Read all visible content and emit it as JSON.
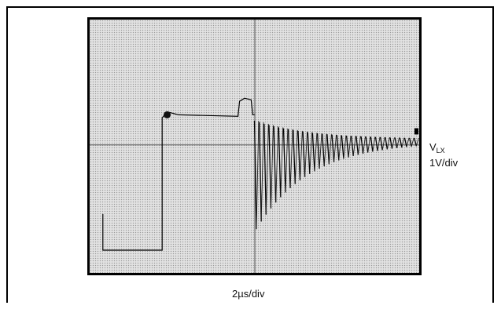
{
  "chart_data": {
    "type": "line",
    "title": "",
    "grid": true,
    "series": [
      {
        "name": "VLX",
        "x": [
          0,
          0.1,
          0.18,
          0.19,
          0.21,
          0.45,
          0.46,
          0.49,
          0.5,
          0.51,
          0.52
        ],
        "y": [
          -3.5,
          -3.5,
          -3.4,
          1.1,
          1.0,
          0.95,
          1.55,
          1.55,
          1.0,
          -2.4,
          0.8
        ]
      }
    ],
    "x_axis": {
      "label": "2µs/div",
      "unit": "µs",
      "divisions": 10,
      "scale_per_div": 2
    },
    "y_axis": {
      "label": "VLX",
      "scale_label": "1V/div",
      "unit": "V",
      "divisions": 8,
      "scale_per_div": 1
    },
    "annotations": {
      "marker": "ground-marker"
    }
  },
  "labels": {
    "vlx": "V",
    "vlx_subscript": "LX",
    "vertical_scale": "1V/div",
    "horizontal_scale": "2µs/div"
  }
}
